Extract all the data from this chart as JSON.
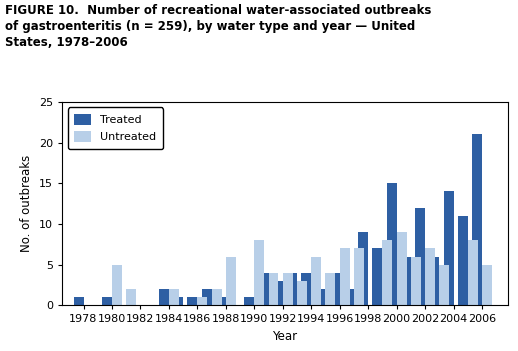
{
  "title_line1": "FIGURE 10.  Number of recreational water-associated outbreaks",
  "title_line2": "of gastroenteritis (n = 259), by water type and year — United",
  "title_line3": "States, 1978–2006",
  "xlabel": "Year",
  "ylabel": "No. of outbreaks",
  "ylim": [
    0,
    25
  ],
  "yticks": [
    0,
    5,
    10,
    15,
    20,
    25
  ],
  "years": [
    1978,
    1979,
    1980,
    1981,
    1984,
    1985,
    1986,
    1987,
    1988,
    1989,
    1990,
    1991,
    1992,
    1993,
    1994,
    1995,
    1996,
    1997,
    1998,
    1999,
    2000,
    2001,
    2002,
    2003,
    2004,
    2005,
    2006
  ],
  "treated": [
    1,
    0,
    1,
    0,
    2,
    1,
    1,
    2,
    1,
    0,
    1,
    4,
    3,
    4,
    4,
    2,
    4,
    2,
    9,
    7,
    15,
    6,
    12,
    6,
    14,
    11,
    21
  ],
  "untreated": [
    0,
    0,
    5,
    2,
    2,
    0,
    1,
    2,
    6,
    0,
    8,
    4,
    4,
    3,
    6,
    4,
    7,
    7,
    0,
    8,
    9,
    6,
    7,
    5,
    0,
    8,
    5
  ],
  "treated_color": "#2e5fa3",
  "untreated_color": "#b8cfe8",
  "bar_width": 0.7,
  "legend_labels": [
    "Treated",
    "Untreated"
  ],
  "xticks": [
    1978,
    1980,
    1982,
    1984,
    1986,
    1988,
    1990,
    1992,
    1994,
    1996,
    1998,
    2000,
    2002,
    2004,
    2006
  ],
  "xlim": [
    1976.5,
    2007.8
  ],
  "title_fontsize": 8.5,
  "axis_fontsize": 8.5,
  "tick_fontsize": 8.0
}
